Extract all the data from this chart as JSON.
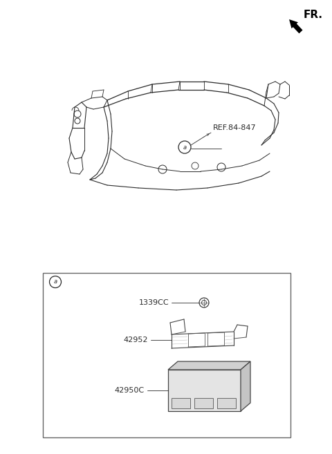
{
  "bg_color": "#ffffff",
  "line_color": "#2a2a2a",
  "fr_label": "FR.",
  "ref_label": "REF.84-847",
  "part_labels": [
    "1339CC",
    "42952",
    "42950C"
  ],
  "font_size_small": 7,
  "font_size_label": 8,
  "font_size_fr": 11,
  "figsize": [
    4.8,
    6.57
  ],
  "dpi": 100
}
